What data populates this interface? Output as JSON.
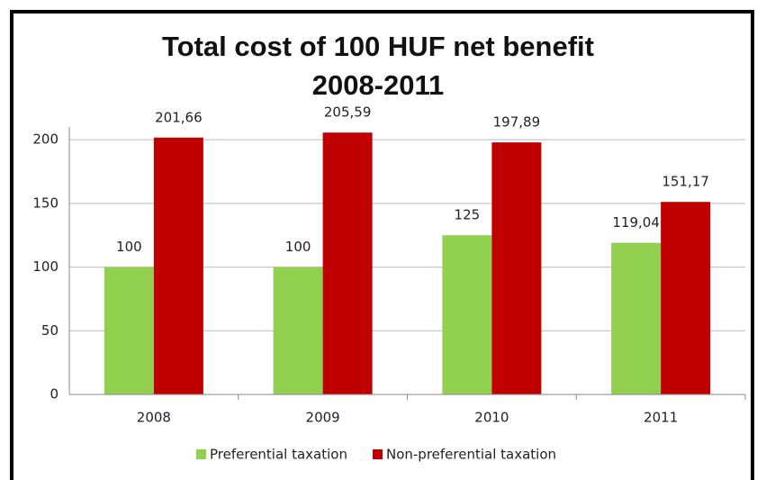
{
  "chart_data": {
    "type": "bar",
    "title": "Total cost of 100 HUF net benefit",
    "subtitle": "2008-2011",
    "categories": [
      "2008",
      "2009",
      "2010",
      "2011"
    ],
    "series": [
      {
        "name": "Preferential taxation",
        "color": "#92d050",
        "values": [
          100,
          100,
          125,
          119.04
        ],
        "value_labels": [
          "100",
          "100",
          "125",
          "119,04"
        ]
      },
      {
        "name": "Non-preferential taxation",
        "color": "#c00000",
        "values": [
          201.66,
          205.59,
          197.89,
          151.17
        ],
        "value_labels": [
          "201,66",
          "205,59",
          "197,89",
          "151,17"
        ]
      }
    ],
    "ylim": [
      0,
      210
    ],
    "yticks": [
      0,
      50,
      100,
      150,
      200
    ],
    "grid": true,
    "legend": "bottom"
  }
}
